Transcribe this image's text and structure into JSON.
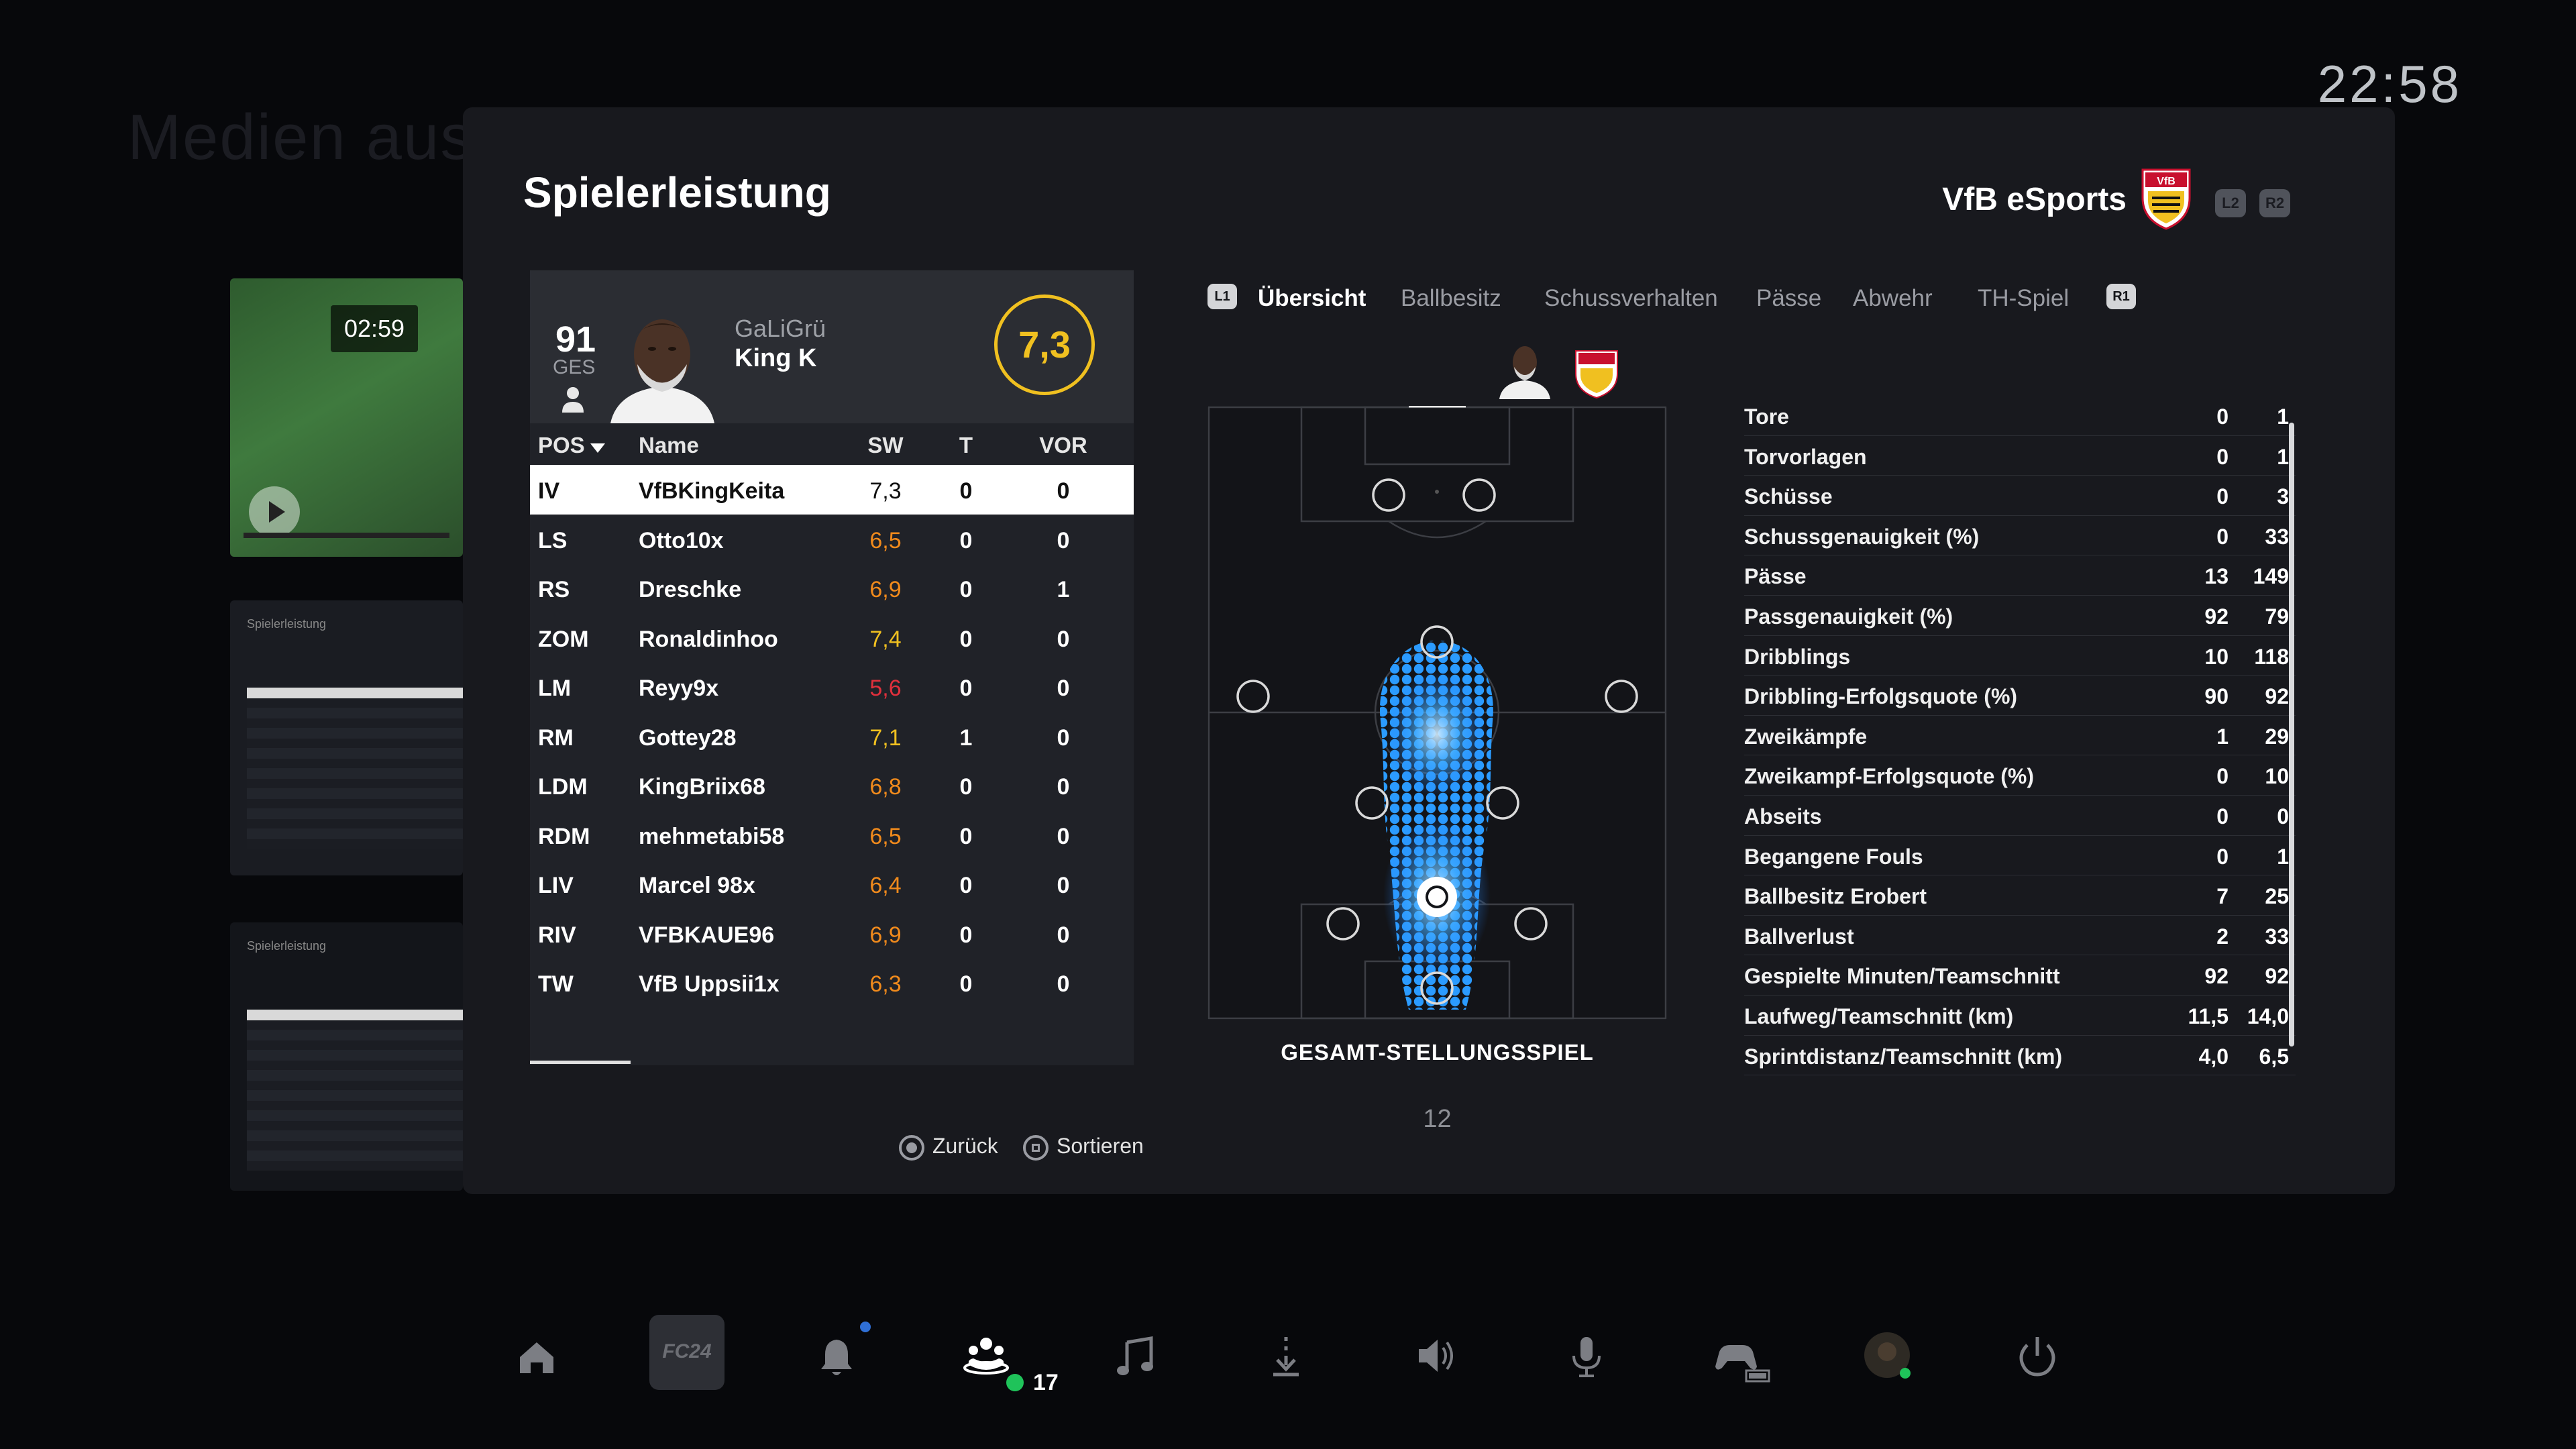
{
  "background": {
    "title": "Medien ausw"
  },
  "clock": "22:58",
  "sidebar_thumbs": {
    "video_time": "02:59",
    "thumb2_title": "Spielerleistung",
    "thumb3_title": "Spielerleistung"
  },
  "panel": {
    "title": "Spielerleistung",
    "team_name": "VfB eSports",
    "l2": "L2",
    "r2": "R2"
  },
  "player_card": {
    "overall": "91",
    "overall_label": "GES",
    "name_line1": "GaLiGrü",
    "name_line2": "King K",
    "match_rating": "7,3"
  },
  "table": {
    "headers": {
      "pos": "POS",
      "name": "Name",
      "sw": "SW",
      "t": "T",
      "vor": "VOR"
    },
    "rows": [
      {
        "pos": "IV",
        "name": "VfBKingKeita",
        "sw": "7,3",
        "t": "0",
        "vor": "0",
        "sw_color": "#111111",
        "selected": true
      },
      {
        "pos": "LS",
        "name": "Otto10x",
        "sw": "6,5",
        "t": "0",
        "vor": "0",
        "sw_color": "#f08a1c"
      },
      {
        "pos": "RS",
        "name": "Dreschke",
        "sw": "6,9",
        "t": "0",
        "vor": "1",
        "sw_color": "#f08a1c"
      },
      {
        "pos": "ZOM",
        "name": "Ronaldinhoo",
        "sw": "7,4",
        "t": "0",
        "vor": "0",
        "sw_color": "#f0c020"
      },
      {
        "pos": "LM",
        "name": "Reyy9x",
        "sw": "5,6",
        "t": "0",
        "vor": "0",
        "sw_color": "#e0303c"
      },
      {
        "pos": "RM",
        "name": "Gottey28",
        "sw": "7,1",
        "t": "1",
        "vor": "0",
        "sw_color": "#f0c020"
      },
      {
        "pos": "LDM",
        "name": "KingBriix68",
        "sw": "6,8",
        "t": "0",
        "vor": "0",
        "sw_color": "#f08a1c"
      },
      {
        "pos": "RDM",
        "name": "mehmetabi58",
        "sw": "6,5",
        "t": "0",
        "vor": "0",
        "sw_color": "#f08a1c"
      },
      {
        "pos": "LIV",
        "name": "Marcel 98x",
        "sw": "6,4",
        "t": "0",
        "vor": "0",
        "sw_color": "#f08a1c"
      },
      {
        "pos": "RIV",
        "name": "VFBKAUE96",
        "sw": "6,9",
        "t": "0",
        "vor": "0",
        "sw_color": "#f08a1c"
      },
      {
        "pos": "TW",
        "name": "VfB Uppsii1x",
        "sw": "6,3",
        "t": "0",
        "vor": "0",
        "sw_color": "#f08a1c"
      }
    ]
  },
  "tabs": {
    "l1": "L1",
    "r1": "R1",
    "items": [
      "Übersicht",
      "Ballbesitz",
      "Schussverhalten",
      "Pässe",
      "Abwehr",
      "TH-Spiel"
    ],
    "active": 0
  },
  "pitch": {
    "label": "GESAMT-STELLUNGSSPIEL",
    "page": "12"
  },
  "stats": [
    {
      "label": "Tore",
      "player": "0",
      "team": "1"
    },
    {
      "label": "Torvorlagen",
      "player": "0",
      "team": "1"
    },
    {
      "label": "Schüsse",
      "player": "0",
      "team": "3"
    },
    {
      "label": "Schussgenauigkeit (%)",
      "player": "0",
      "team": "33"
    },
    {
      "label": "Pässe",
      "player": "13",
      "team": "149"
    },
    {
      "label": "Passgenauigkeit (%)",
      "player": "92",
      "team": "79"
    },
    {
      "label": "Dribblings",
      "player": "10",
      "team": "118"
    },
    {
      "label": "Dribbling-Erfolgsquote (%)",
      "player": "90",
      "team": "92"
    },
    {
      "label": "Zweikämpfe",
      "player": "1",
      "team": "29"
    },
    {
      "label": "Zweikampf-Erfolgsquote (%)",
      "player": "0",
      "team": "10"
    },
    {
      "label": "Abseits",
      "player": "0",
      "team": "0"
    },
    {
      "label": "Begangene Fouls",
      "player": "0",
      "team": "1"
    },
    {
      "label": "Ballbesitz Erobert",
      "player": "7",
      "team": "25"
    },
    {
      "label": "Ballverlust",
      "player": "2",
      "team": "33"
    },
    {
      "label": "Gespielte Minuten/Teamschnitt",
      "player": "92",
      "team": "92"
    },
    {
      "label": "Laufweg/Teamschnitt (km)",
      "player": "11,5",
      "team": "14,0"
    },
    {
      "label": "Sprintdistanz/Teamschnitt (km)",
      "player": "4,0",
      "team": "6,5"
    }
  ],
  "footer": {
    "back": "Zurück",
    "sort": "Sortieren"
  },
  "dock": {
    "game_label": "FC24",
    "friends_online": "17"
  },
  "colors": {
    "accent": "#f0c020",
    "heatmap": "#1e8cff",
    "selected_row": "#ffffff"
  }
}
